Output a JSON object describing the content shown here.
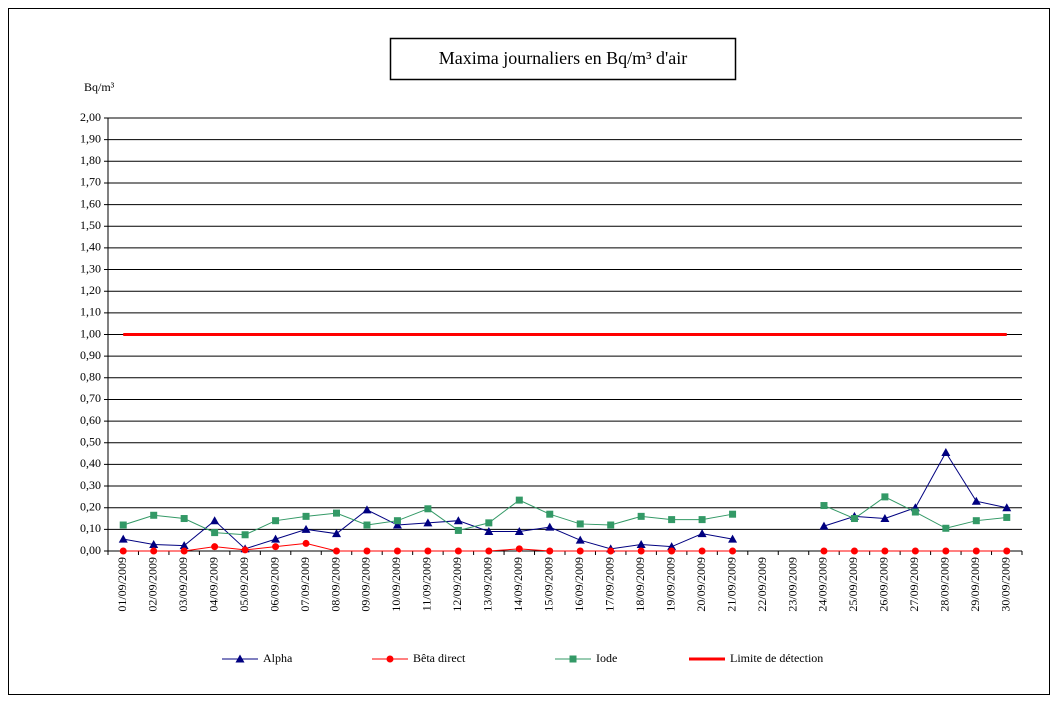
{
  "chart_data": {
    "type": "line",
    "title": "Maxima journaliers en Bq/m³ d'air",
    "y_label": "Bq/m³",
    "categories": [
      "01/09/2009",
      "02/09/2009",
      "03/09/2009",
      "04/09/2009",
      "05/09/2009",
      "06/09/2009",
      "07/09/2009",
      "08/09/2009",
      "09/09/2009",
      "10/09/2009",
      "11/09/2009",
      "12/09/2009",
      "13/09/2009",
      "14/09/2009",
      "15/09/2009",
      "16/09/2009",
      "17/09/2009",
      "18/09/2009",
      "19/09/2009",
      "20/09/2009",
      "21/09/2009",
      "22/09/2009",
      "23/09/2009",
      "24/09/2009",
      "25/09/2009",
      "26/09/2009",
      "27/09/2009",
      "28/09/2009",
      "29/09/2009",
      "30/09/2009"
    ],
    "series": [
      {
        "name": "Alpha",
        "color": "#000080",
        "marker": "triangle",
        "width": 1,
        "values": [
          0.055,
          0.03,
          0.025,
          0.14,
          0.01,
          0.055,
          0.1,
          0.08,
          0.19,
          0.12,
          0.13,
          0.14,
          0.09,
          0.09,
          0.11,
          0.05,
          0.01,
          0.03,
          0.02,
          0.08,
          0.055,
          null,
          null,
          0.115,
          0.16,
          0.15,
          0.2,
          0.455,
          0.23,
          0.2
        ]
      },
      {
        "name": "Bêta direct",
        "color": "#ff0000",
        "marker": "circle",
        "width": 1,
        "values": [
          0,
          0,
          0,
          0.02,
          0.005,
          0.02,
          0.035,
          0,
          0,
          0,
          0,
          0,
          0,
          0.01,
          0,
          0,
          0,
          0,
          0,
          0,
          0,
          null,
          null,
          0,
          0,
          0,
          0,
          0,
          0,
          0
        ]
      },
      {
        "name": "Iode",
        "color": "#339966",
        "marker": "square",
        "width": 1,
        "values": [
          0.12,
          0.165,
          0.15,
          0.085,
          0.075,
          0.14,
          0.16,
          0.175,
          0.12,
          0.14,
          0.195,
          0.095,
          0.13,
          0.235,
          0.17,
          0.125,
          0.12,
          0.16,
          0.145,
          0.145,
          0.17,
          null,
          null,
          0.21,
          0.15,
          0.25,
          0.18,
          0.105,
          0.14,
          0.155
        ]
      },
      {
        "name": "Limite de détection",
        "color": "#ff0000",
        "marker": "none",
        "width": 3,
        "values": [
          1,
          1,
          1,
          1,
          1,
          1,
          1,
          1,
          1,
          1,
          1,
          1,
          1,
          1,
          1,
          1,
          1,
          1,
          1,
          1,
          1,
          1,
          1,
          1,
          1,
          1,
          1,
          1,
          1,
          1
        ]
      }
    ],
    "ylim": [
      0,
      2
    ],
    "yticks": [
      {
        "value": 0,
        "label": "0,00"
      },
      {
        "value": 0.1,
        "label": "0,10"
      },
      {
        "value": 0.2,
        "label": "0,20"
      },
      {
        "value": 0.3,
        "label": "0,30"
      },
      {
        "value": 0.4,
        "label": "0,40"
      },
      {
        "value": 0.5,
        "label": "0,50"
      },
      {
        "value": 0.6,
        "label": "0,60"
      },
      {
        "value": 0.7,
        "label": "0,70"
      },
      {
        "value": 0.8,
        "label": "0,80"
      },
      {
        "value": 0.9,
        "label": "0,90"
      },
      {
        "value": 1,
        "label": "1,00"
      },
      {
        "value": 1.1,
        "label": "1,10"
      },
      {
        "value": 1.2,
        "label": "1,20"
      },
      {
        "value": 1.3,
        "label": "1,30"
      },
      {
        "value": 1.4,
        "label": "1,40"
      },
      {
        "value": 1.5,
        "label": "1,50"
      },
      {
        "value": 1.6,
        "label": "1,60"
      },
      {
        "value": 1.7,
        "label": "1,70"
      },
      {
        "value": 1.8,
        "label": "1,80"
      },
      {
        "value": 1.9,
        "label": "1,90"
      },
      {
        "value": 2,
        "label": "2,00"
      }
    ],
    "grid": true,
    "legend": "bottom"
  }
}
